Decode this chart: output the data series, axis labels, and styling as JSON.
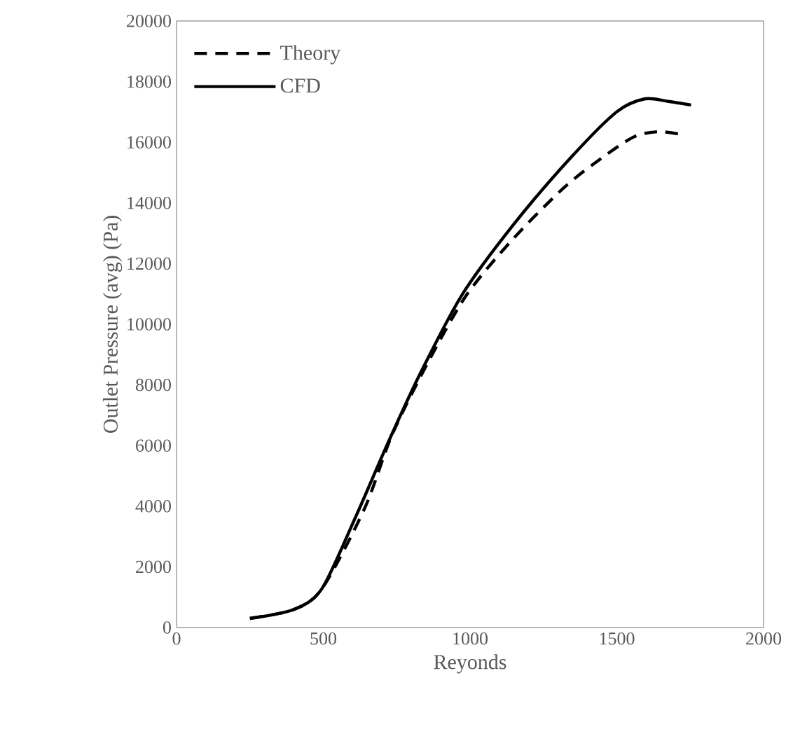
{
  "chart_data": {
    "type": "line",
    "xlabel": "Reyonds",
    "ylabel": "Outlet Pressure (avg) (Pa)",
    "xlim": [
      0,
      2000
    ],
    "xticks": [
      0,
      500,
      1000,
      1500,
      2000
    ],
    "ylim": [
      0,
      20000
    ],
    "yticks": [
      0,
      2000,
      4000,
      6000,
      8000,
      10000,
      12000,
      14000,
      16000,
      18000,
      20000
    ],
    "grid": false,
    "legend": "top left",
    "marker": "none",
    "series": [
      {
        "name": "Theory",
        "color": "#000000",
        "line_style": "dashed",
        "x": [
          250,
          401,
          496,
          640,
          735,
          862,
          990,
          1149,
          1324,
          1467,
          1563,
          1642,
          1714
        ],
        "values": [
          300,
          600,
          1290,
          3910,
          6370,
          8840,
          10990,
          12840,
          14540,
          15610,
          16200,
          16350,
          16270
        ]
      },
      {
        "name": "CFD",
        "color": "#000000",
        "line_style": "solid",
        "x": [
          250,
          401,
          496,
          608,
          719,
          830,
          974,
          1149,
          1340,
          1499,
          1594,
          1674,
          1753
        ],
        "values": [
          300,
          600,
          1290,
          3600,
          6060,
          8370,
          10990,
          13300,
          15460,
          17000,
          17430,
          17350,
          17230
        ]
      }
    ]
  }
}
